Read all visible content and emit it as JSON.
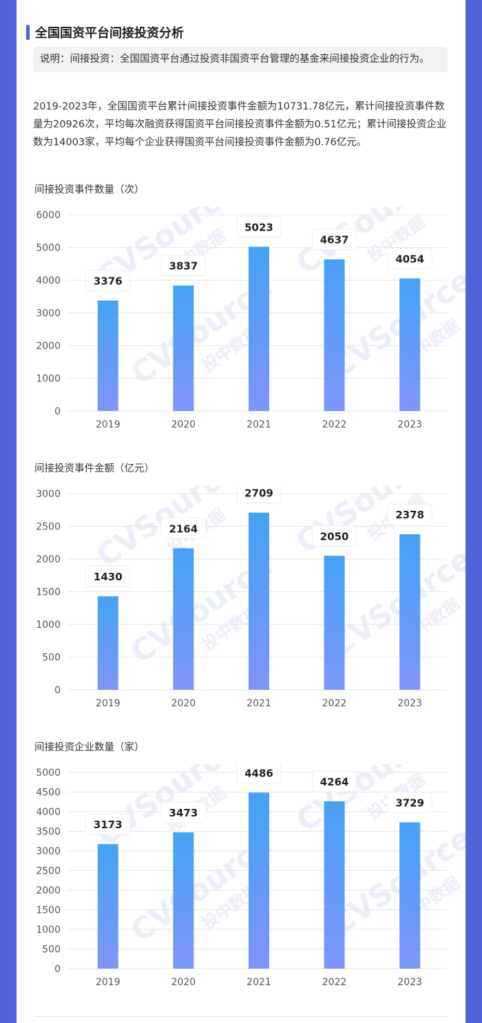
{
  "header": {
    "title": "全国国资平台间接投资分析"
  },
  "note": {
    "text": "说明：间接投资：全国国资平台通过投资非国资平台管理的基金来间接投资企业的行为。"
  },
  "summary": {
    "text": "2019-2023年，全国国资平台累计间接投资事件金额为10731.78亿元，累计间接投资事件数量为20926次，平均每次融资获得国资平台间接投资事件金额为0.51亿元；累计间接投资企业数为14003家，平均每个企业获得国资平台间接投资事件金额为0.76亿元。"
  },
  "watermark": "CVSource 投中数据",
  "colors": {
    "bar_top": "#44a2f5",
    "bar_bottom": "#7e95f9",
    "grid": "#e6e6e6",
    "accent": "#4f63d9"
  },
  "chart_data": [
    {
      "type": "bar",
      "title": "间接投资事件数量（次）",
      "categories": [
        "2019",
        "2020",
        "2021",
        "2022",
        "2023"
      ],
      "values": [
        3376,
        3837,
        5023,
        4637,
        4054
      ],
      "ylim": [
        0,
        6000
      ],
      "yticks": [
        0,
        1000,
        2000,
        3000,
        4000,
        5000,
        6000
      ],
      "grid": true
    },
    {
      "type": "bar",
      "title": "间接投资事件金额（亿元）",
      "categories": [
        "2019",
        "2020",
        "2021",
        "2022",
        "2023"
      ],
      "values": [
        1430,
        2164,
        2709,
        2050,
        2378
      ],
      "ylim": [
        0,
        3000
      ],
      "yticks": [
        0,
        500,
        1000,
        1500,
        2000,
        2500,
        3000
      ],
      "grid": true
    },
    {
      "type": "bar",
      "title": "间接投资企业数量（家）",
      "categories": [
        "2019",
        "2020",
        "2021",
        "2022",
        "2023"
      ],
      "values": [
        3173,
        3473,
        4486,
        4264,
        3729
      ],
      "ylim": [
        0,
        5000
      ],
      "yticks": [
        0,
        500,
        1000,
        1500,
        2000,
        2500,
        3000,
        3500,
        4000,
        4500,
        5000
      ],
      "grid": true
    }
  ]
}
